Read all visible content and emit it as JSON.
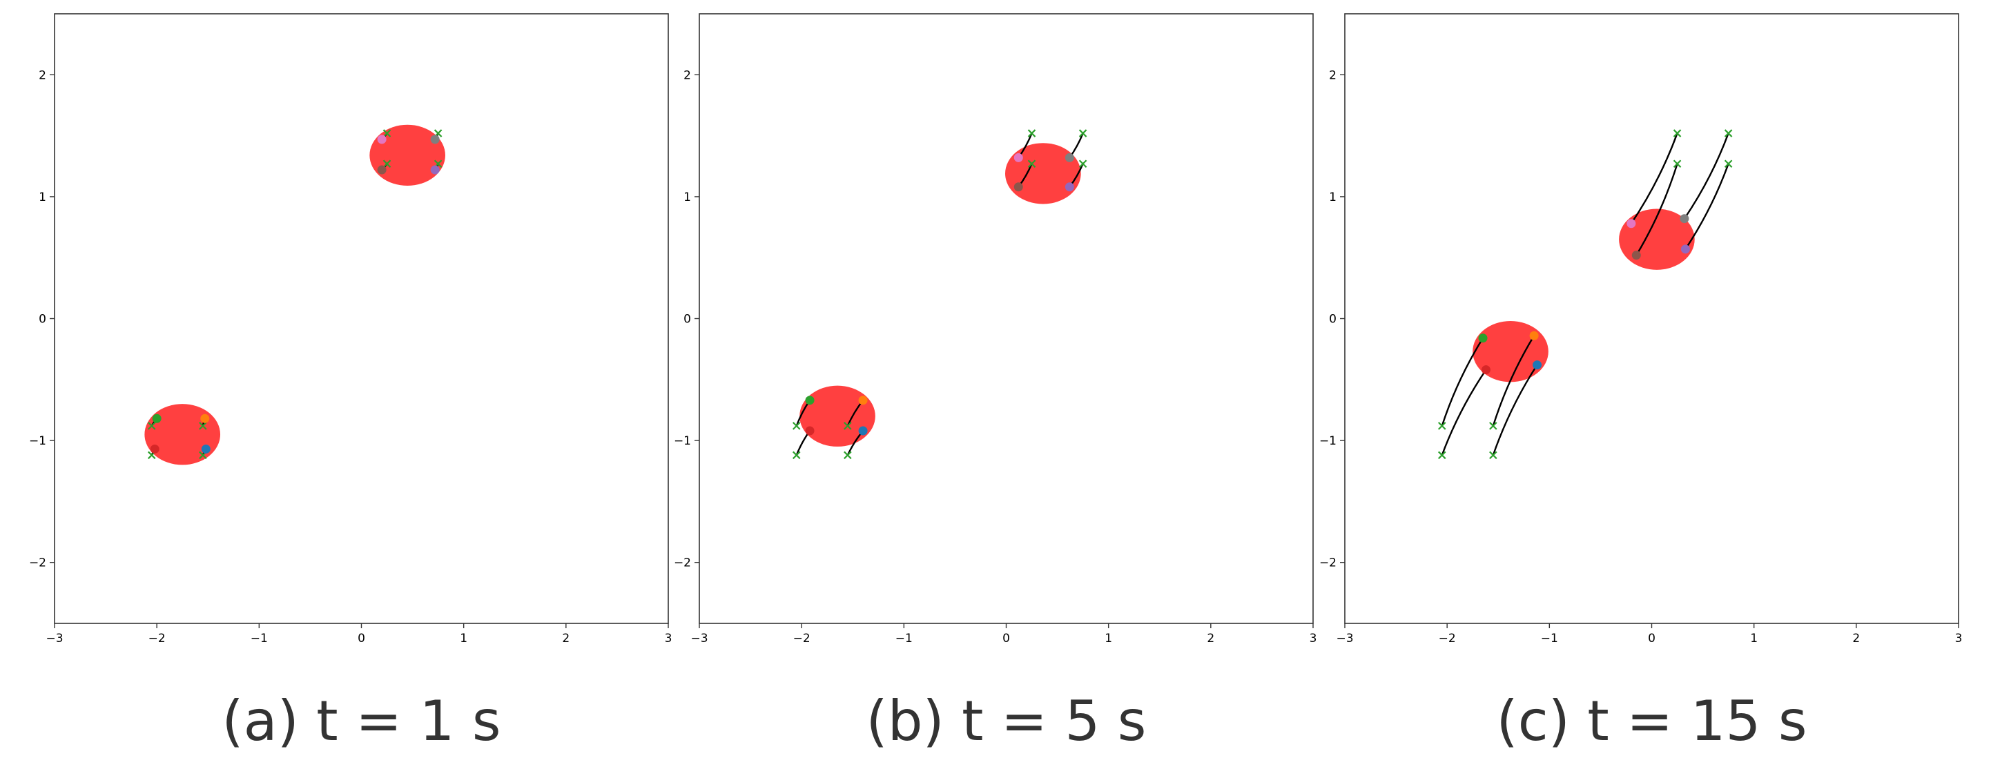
{
  "chart_data": [
    {
      "type": "scatter",
      "caption": "(a) t = 1 s",
      "xlim": [
        -3,
        3
      ],
      "ylim": [
        -2.5,
        2.5
      ],
      "xticks": [
        -3,
        -2,
        -1,
        0,
        1,
        2,
        3
      ],
      "yticks": [
        -2,
        -1,
        0,
        1,
        2
      ],
      "grid": false,
      "targets": [
        [
          -2.05,
          -0.88
        ],
        [
          -1.55,
          -0.88
        ],
        [
          -2.05,
          -1.12
        ],
        [
          -1.55,
          -1.12
        ],
        [
          0.25,
          1.52
        ],
        [
          0.75,
          1.52
        ],
        [
          0.25,
          1.27
        ],
        [
          0.75,
          1.27
        ]
      ],
      "blobs": [
        {
          "center": [
            -1.75,
            -0.95
          ],
          "width": 0.74,
          "height": 0.5
        },
        {
          "center": [
            0.45,
            1.34
          ],
          "width": 0.74,
          "height": 0.5
        }
      ],
      "agents": [
        {
          "color": "#2ca02c",
          "pos": [
            -2.0,
            -0.82
          ]
        },
        {
          "color": "#ff7f0e",
          "pos": [
            -1.53,
            -0.82
          ]
        },
        {
          "color": "#d62728",
          "pos": [
            -2.02,
            -1.07
          ]
        },
        {
          "color": "#1f77b4",
          "pos": [
            -1.52,
            -1.07
          ]
        },
        {
          "color": "#e377c2",
          "pos": [
            0.2,
            1.47
          ]
        },
        {
          "color": "#7f7f7f",
          "pos": [
            0.72,
            1.47
          ]
        },
        {
          "color": "#8c564b",
          "pos": [
            0.2,
            1.22
          ]
        },
        {
          "color": "#9467bd",
          "pos": [
            0.72,
            1.22
          ]
        }
      ]
    },
    {
      "type": "scatter",
      "caption": "(b) t = 5 s",
      "xlim": [
        -3,
        3
      ],
      "ylim": [
        -2.5,
        2.5
      ],
      "xticks": [
        -3,
        -2,
        -1,
        0,
        1,
        2,
        3
      ],
      "yticks": [
        -2,
        -1,
        0,
        1,
        2
      ],
      "grid": false,
      "targets": [
        [
          -2.05,
          -0.88
        ],
        [
          -1.55,
          -0.88
        ],
        [
          -2.05,
          -1.12
        ],
        [
          -1.55,
          -1.12
        ],
        [
          0.25,
          1.52
        ],
        [
          0.75,
          1.52
        ],
        [
          0.25,
          1.27
        ],
        [
          0.75,
          1.27
        ]
      ],
      "blobs": [
        {
          "center": [
            -1.65,
            -0.8
          ],
          "width": 0.74,
          "height": 0.5
        },
        {
          "center": [
            0.36,
            1.19
          ],
          "width": 0.74,
          "height": 0.5
        }
      ],
      "agents": [
        {
          "color": "#2ca02c",
          "pos": [
            -1.92,
            -0.67
          ]
        },
        {
          "color": "#ff7f0e",
          "pos": [
            -1.4,
            -0.67
          ]
        },
        {
          "color": "#d62728",
          "pos": [
            -1.92,
            -0.92
          ]
        },
        {
          "color": "#1f77b4",
          "pos": [
            -1.4,
            -0.92
          ]
        },
        {
          "color": "#e377c2",
          "pos": [
            0.12,
            1.32
          ]
        },
        {
          "color": "#7f7f7f",
          "pos": [
            0.62,
            1.32
          ]
        },
        {
          "color": "#8c564b",
          "pos": [
            0.12,
            1.08
          ]
        },
        {
          "color": "#9467bd",
          "pos": [
            0.62,
            1.08
          ]
        }
      ]
    },
    {
      "type": "scatter",
      "caption": "(c) t = 15 s",
      "xlim": [
        -3,
        3
      ],
      "ylim": [
        -2.5,
        2.5
      ],
      "xticks": [
        -3,
        -2,
        -1,
        0,
        1,
        2,
        3
      ],
      "yticks": [
        -2,
        -1,
        0,
        1,
        2
      ],
      "grid": false,
      "targets": [
        [
          -2.05,
          -0.88
        ],
        [
          -1.55,
          -0.88
        ],
        [
          -2.05,
          -1.12
        ],
        [
          -1.55,
          -1.12
        ],
        [
          0.25,
          1.52
        ],
        [
          0.75,
          1.52
        ],
        [
          0.25,
          1.27
        ],
        [
          0.75,
          1.27
        ]
      ],
      "blobs": [
        {
          "center": [
            -1.38,
            -0.27
          ],
          "width": 0.74,
          "height": 0.5
        },
        {
          "center": [
            0.05,
            0.65
          ],
          "width": 0.74,
          "height": 0.5
        }
      ],
      "agents": [
        {
          "color": "#2ca02c",
          "pos": [
            -1.65,
            -0.16
          ]
        },
        {
          "color": "#ff7f0e",
          "pos": [
            -1.15,
            -0.14
          ]
        },
        {
          "color": "#d62728",
          "pos": [
            -1.62,
            -0.42
          ]
        },
        {
          "color": "#1f77b4",
          "pos": [
            -1.12,
            -0.38
          ]
        },
        {
          "color": "#e377c2",
          "pos": [
            -0.2,
            0.78
          ]
        },
        {
          "color": "#7f7f7f",
          "pos": [
            0.32,
            0.82
          ]
        },
        {
          "color": "#8c564b",
          "pos": [
            -0.15,
            0.52
          ]
        },
        {
          "color": "#9467bd",
          "pos": [
            0.33,
            0.57
          ]
        }
      ]
    }
  ],
  "style": {
    "blob_color": "#ff0000",
    "blob_opacity": 0.75,
    "trail_color": "#000000",
    "target_color": "#2ca02c",
    "frame_color": "#333333",
    "caption_color": "#333333"
  }
}
